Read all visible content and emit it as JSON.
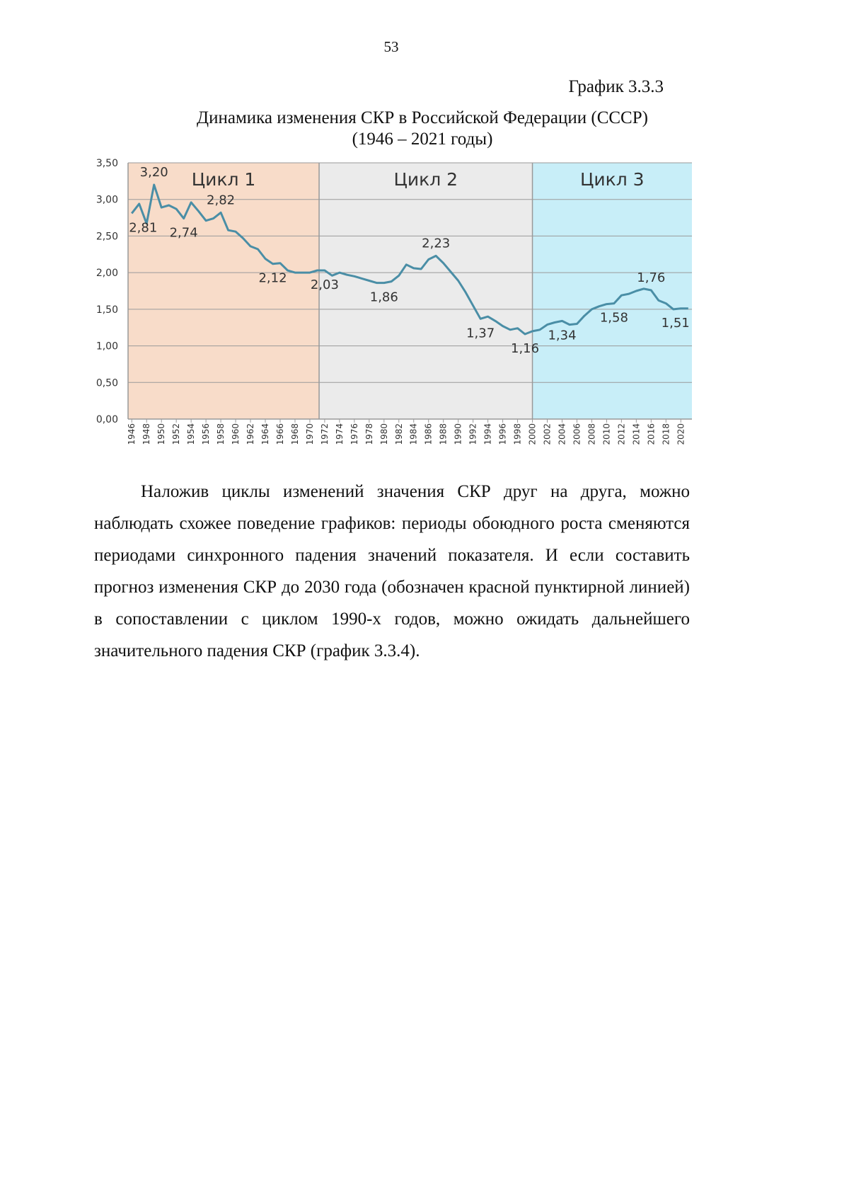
{
  "page_number": "53",
  "caption": "График 3.3.3",
  "title_lines": [
    "Динамика изменения СКР в Российской Федерации (СССР)",
    "(1946 – 2021 годы)"
  ],
  "paragraph": "Наложив циклы изменений значения СКР друг на друга, можно наблюдать схожее поведение графиков: периоды обоюдного роста сменяются периодами синхронного падения значений показателя. И если составить прогноз изменения СКР до 2030 года (обозначен красной пунктирной линией) в сопоставлении с циклом 1990-х годов, можно ожидать дальнейшего значительного падения СКР (график 3.3.4).",
  "chart_data": {
    "type": "line",
    "color": "#4a8ea6",
    "x": [
      1946,
      1947,
      1948,
      1949,
      1950,
      1951,
      1952,
      1953,
      1954,
      1955,
      1956,
      1957,
      1958,
      1959,
      1960,
      1961,
      1962,
      1963,
      1964,
      1965,
      1966,
      1967,
      1968,
      1969,
      1970,
      1971,
      1972,
      1973,
      1974,
      1975,
      1976,
      1977,
      1978,
      1979,
      1980,
      1981,
      1982,
      1983,
      1984,
      1985,
      1986,
      1987,
      1988,
      1989,
      1990,
      1991,
      1992,
      1993,
      1994,
      1995,
      1996,
      1997,
      1998,
      1999,
      2000,
      2001,
      2002,
      2003,
      2004,
      2005,
      2006,
      2007,
      2008,
      2009,
      2010,
      2011,
      2012,
      2013,
      2014,
      2015,
      2016,
      2017,
      2018,
      2019,
      2020,
      2021
    ],
    "values": [
      2.81,
      2.94,
      2.67,
      3.2,
      2.89,
      2.92,
      2.87,
      2.74,
      2.96,
      2.84,
      2.71,
      2.74,
      2.82,
      2.58,
      2.56,
      2.47,
      2.36,
      2.32,
      2.19,
      2.12,
      2.13,
      2.03,
      2.0,
      2.0,
      2.0,
      2.03,
      2.03,
      1.96,
      2.0,
      1.97,
      1.95,
      1.92,
      1.89,
      1.86,
      1.86,
      1.88,
      1.96,
      2.11,
      2.06,
      2.05,
      2.18,
      2.23,
      2.13,
      2.01,
      1.89,
      1.73,
      1.55,
      1.37,
      1.4,
      1.34,
      1.27,
      1.22,
      1.24,
      1.16,
      1.2,
      1.22,
      1.29,
      1.32,
      1.34,
      1.29,
      1.3,
      1.41,
      1.5,
      1.54,
      1.57,
      1.58,
      1.69,
      1.71,
      1.75,
      1.78,
      1.76,
      1.62,
      1.58,
      1.5,
      1.51,
      1.51
    ],
    "value_labels": [
      "2,81",
      null,
      null,
      "3,20",
      null,
      null,
      null,
      "2,74",
      null,
      null,
      null,
      null,
      "2,82",
      null,
      null,
      null,
      null,
      null,
      null,
      "2,12",
      null,
      null,
      null,
      null,
      null,
      null,
      "2,03",
      null,
      null,
      null,
      null,
      null,
      null,
      null,
      "1,86",
      null,
      null,
      null,
      null,
      null,
      null,
      "2,23",
      null,
      null,
      null,
      null,
      null,
      "1,37",
      null,
      null,
      null,
      null,
      null,
      "1,16",
      null,
      null,
      null,
      null,
      "1,34",
      null,
      null,
      null,
      null,
      null,
      null,
      "1,58",
      null,
      null,
      null,
      null,
      "1,76",
      null,
      null,
      null,
      null,
      "1,51"
    ],
    "xlim": [
      1945.5,
      2021.5
    ],
    "xticks": [
      1946,
      1948,
      1950,
      1952,
      1954,
      1956,
      1958,
      1960,
      1962,
      1964,
      1966,
      1968,
      1970,
      1972,
      1974,
      1976,
      1978,
      1980,
      1982,
      1984,
      1986,
      1988,
      1990,
      1992,
      1994,
      1996,
      1998,
      2000,
      2002,
      2004,
      2006,
      2008,
      2010,
      2012,
      2014,
      2016,
      2018,
      2020
    ],
    "ylim": [
      0,
      3.5
    ],
    "yticks": [
      {
        "value": 0,
        "label": "0,00"
      },
      {
        "value": 0.5,
        "label": "0,50"
      },
      {
        "value": 1,
        "label": "1,00"
      },
      {
        "value": 1.5,
        "label": "1,50"
      },
      {
        "value": 2,
        "label": "2,00"
      },
      {
        "value": 2.5,
        "label": "2,50"
      },
      {
        "value": 3,
        "label": "3,00"
      },
      {
        "value": 3.5,
        "label": "3,50"
      }
    ],
    "grid": true,
    "bands": [
      {
        "label": "Цикл 1",
        "from": 1945.5,
        "to": 1971.25,
        "color": "#f8dcc9"
      },
      {
        "label": "Цикл 2",
        "from": 1971.25,
        "to": 2000,
        "color": "#ebebeb"
      },
      {
        "label": "Цикл 3",
        "from": 2000,
        "to": 2021.5,
        "color": "#c8eef8"
      }
    ]
  }
}
